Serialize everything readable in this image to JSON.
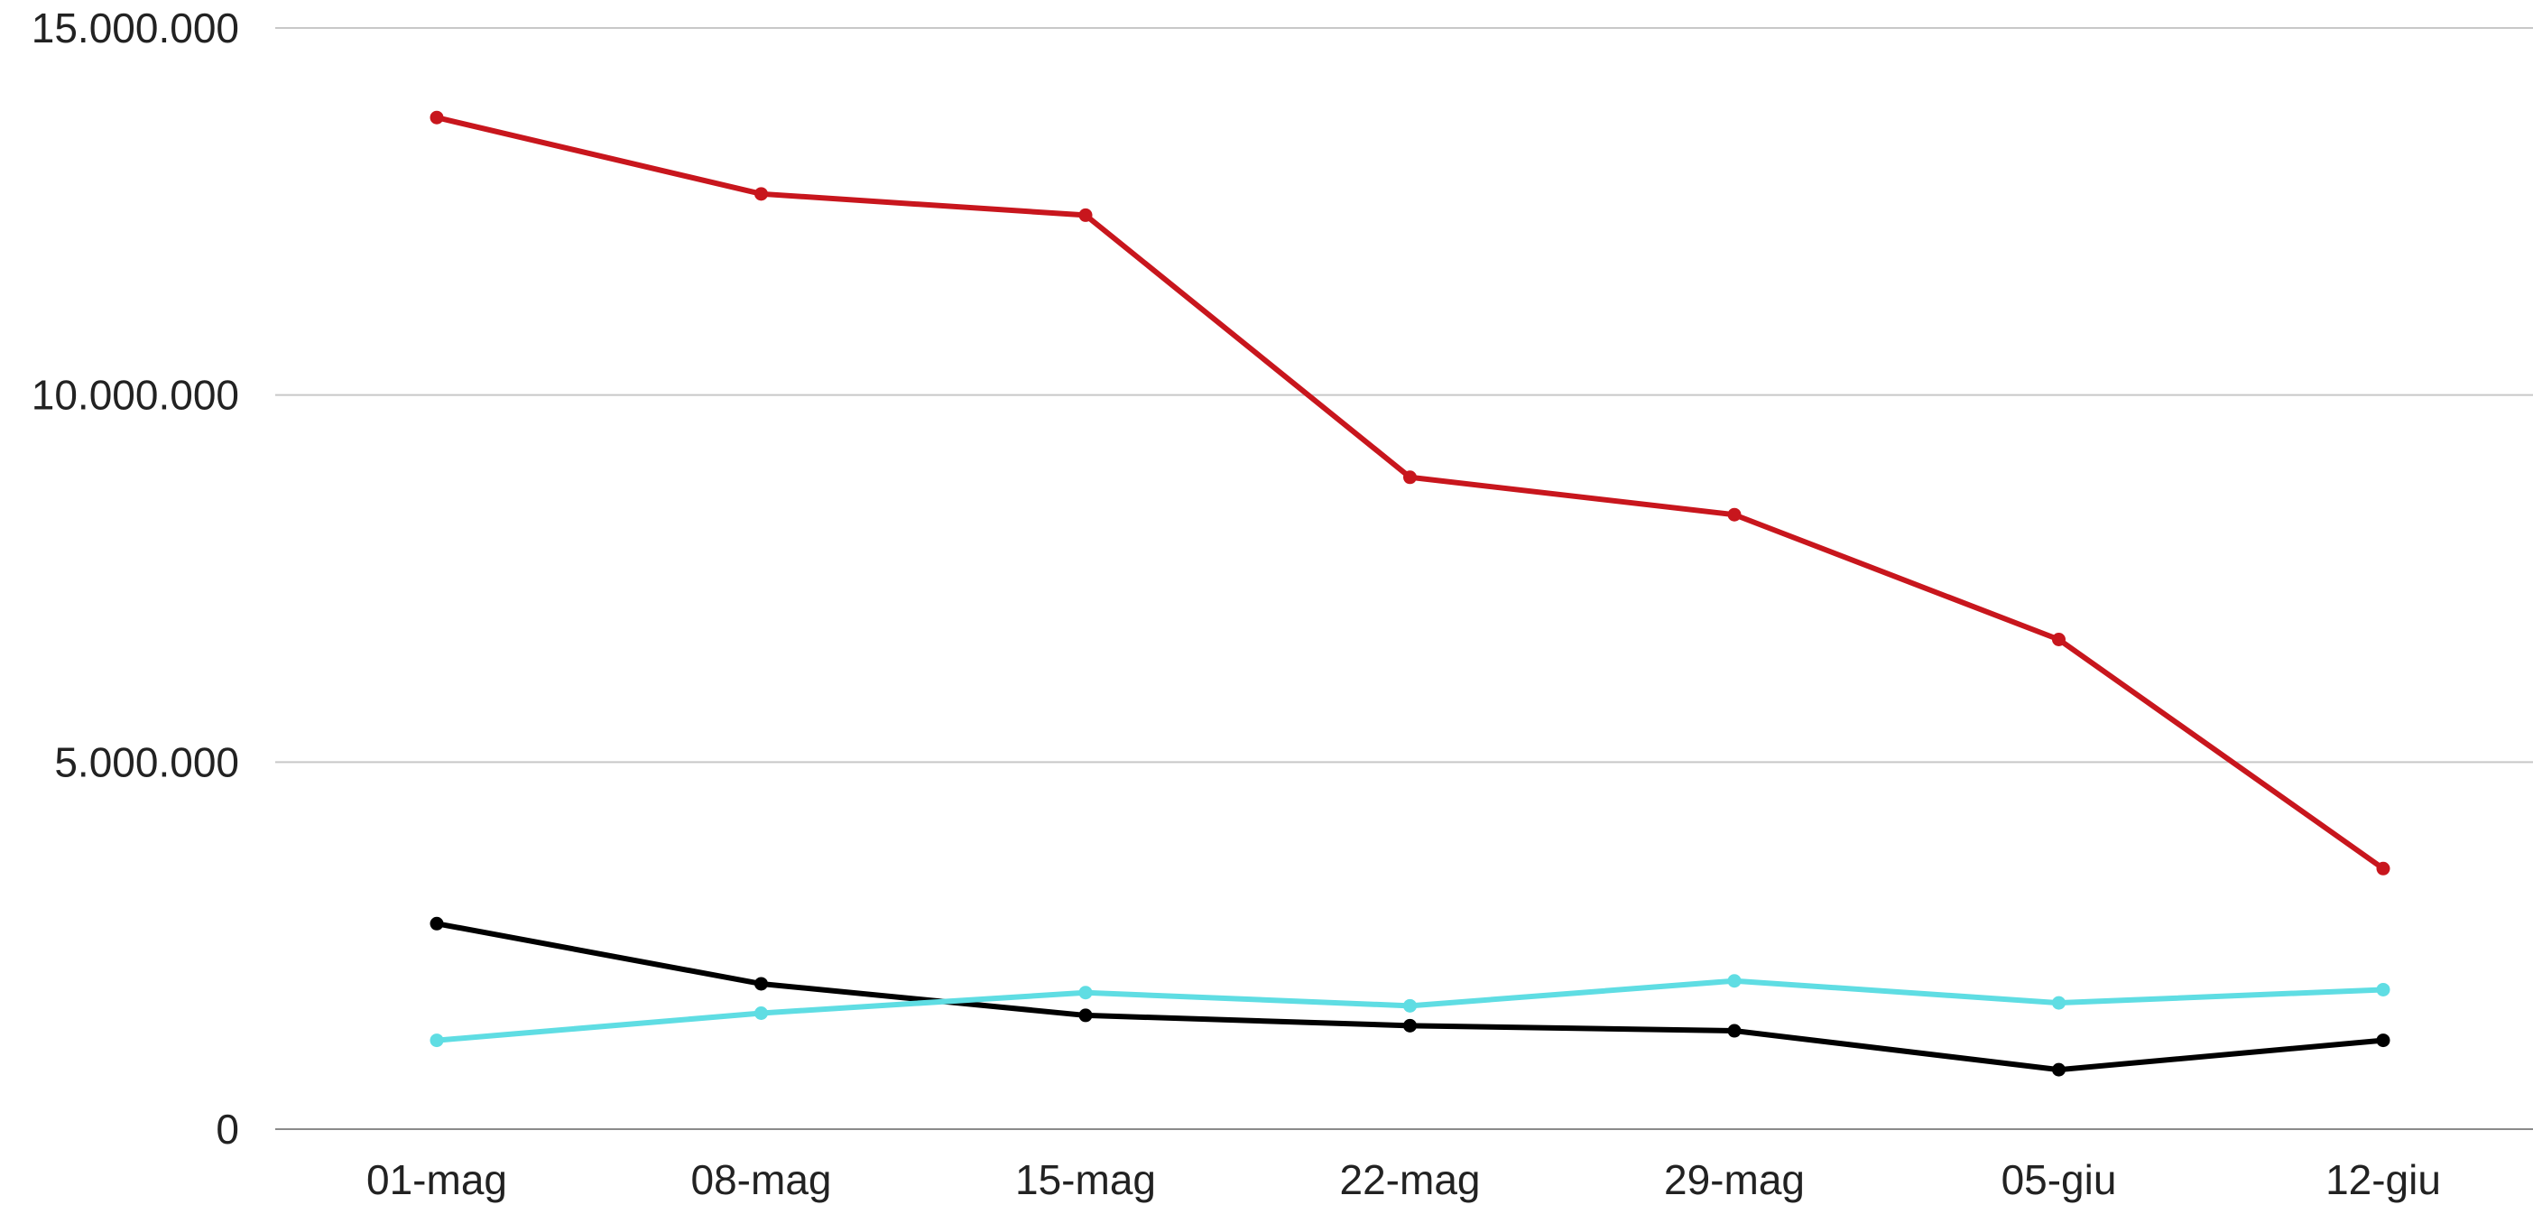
{
  "chart_data": {
    "type": "line",
    "title": "",
    "xlabel": "",
    "ylabel": "",
    "categories": [
      "01-mag",
      "08-mag",
      "15-mag",
      "22-mag",
      "29-mag",
      "05-giu",
      "12-giu"
    ],
    "ylim": [
      0,
      15000000
    ],
    "yticks": [
      0,
      5000000,
      10000000,
      15000000
    ],
    "ytick_labels": [
      "0",
      "5.000.000",
      "10.000.000",
      "15.000.000"
    ],
    "grid": true,
    "legend": "none",
    "series": [
      {
        "color": "#c8161d",
        "values": [
          13780000,
          12740000,
          12450000,
          8880000,
          8370000,
          6670000,
          3550000
        ]
      },
      {
        "color": "#000000",
        "values": [
          2800000,
          1980000,
          1550000,
          1410000,
          1340000,
          810000,
          1210000
        ]
      },
      {
        "color": "#5fdde3",
        "values": [
          1210000,
          1580000,
          1860000,
          1680000,
          2020000,
          1720000,
          1900000
        ]
      }
    ]
  }
}
